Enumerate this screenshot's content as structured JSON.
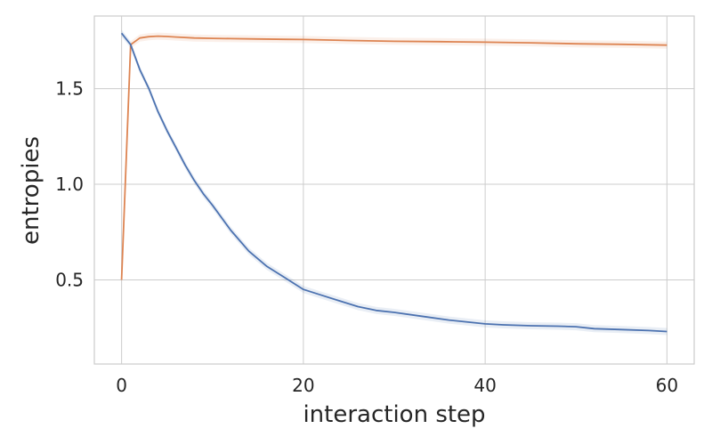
{
  "chart_data": {
    "type": "line",
    "title": "",
    "xlabel": "interaction step",
    "ylabel": "entropies",
    "xlim": [
      -3,
      63
    ],
    "ylim": [
      0.06,
      1.88
    ],
    "xticks": [
      0,
      20,
      40,
      60
    ],
    "yticks": [
      0.5,
      1.0,
      1.5
    ],
    "xtick_labels": [
      "0",
      "20",
      "40",
      "60"
    ],
    "ytick_labels": [
      "0.5",
      "1.0",
      "1.5"
    ],
    "grid": true,
    "legend": "none",
    "series": [
      {
        "color": "#dd8452",
        "x": [
          0,
          1,
          2,
          3,
          4,
          5,
          6,
          8,
          10,
          12,
          15,
          18,
          20,
          25,
          30,
          35,
          40,
          45,
          50,
          55,
          60
        ],
        "y": [
          0.5,
          1.73,
          1.765,
          1.772,
          1.775,
          1.773,
          1.77,
          1.765,
          1.763,
          1.762,
          1.76,
          1.758,
          1.757,
          1.752,
          1.748,
          1.746,
          1.743,
          1.74,
          1.735,
          1.732,
          1.728
        ]
      },
      {
        "color": "#4c72b0",
        "x": [
          0,
          1,
          2,
          3,
          4,
          5,
          6,
          7,
          8,
          9,
          10,
          12,
          14,
          16,
          18,
          20,
          22,
          24,
          26,
          28,
          30,
          33,
          36,
          40,
          42,
          45,
          48,
          50,
          52,
          55,
          58,
          60
        ],
        "y": [
          1.79,
          1.73,
          1.6,
          1.5,
          1.38,
          1.28,
          1.19,
          1.1,
          1.02,
          0.95,
          0.89,
          0.76,
          0.65,
          0.57,
          0.51,
          0.45,
          0.42,
          0.39,
          0.36,
          0.34,
          0.33,
          0.31,
          0.29,
          0.27,
          0.265,
          0.26,
          0.258,
          0.255,
          0.245,
          0.24,
          0.235,
          0.23
        ]
      }
    ]
  }
}
